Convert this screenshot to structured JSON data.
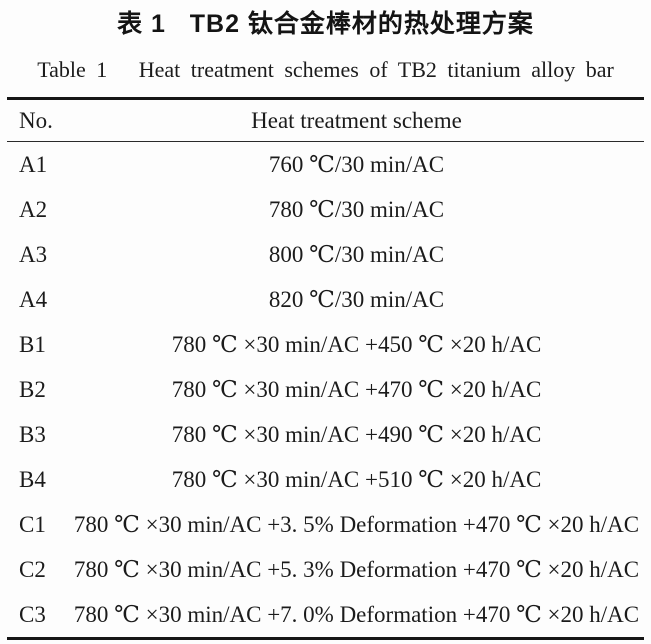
{
  "titles": {
    "chinese": "表 1   TB2 钛合金棒材的热处理方案",
    "english": "Table 1   Heat treatment schemes of TB2 titanium alloy bar"
  },
  "table": {
    "columns": [
      "No.",
      "Heat treatment scheme"
    ],
    "rows": [
      {
        "no": "A1",
        "scheme": "760 ℃/30 min/AC"
      },
      {
        "no": "A2",
        "scheme": "780 ℃/30 min/AC"
      },
      {
        "no": "A3",
        "scheme": "800 ℃/30 min/AC"
      },
      {
        "no": "A4",
        "scheme": "820 ℃/30 min/AC"
      },
      {
        "no": "B1",
        "scheme": "780 ℃ ×30 min/AC +450 ℃ ×20 h/AC"
      },
      {
        "no": "B2",
        "scheme": "780 ℃ ×30 min/AC +470 ℃ ×20 h/AC"
      },
      {
        "no": "B3",
        "scheme": "780 ℃ ×30 min/AC +490 ℃ ×20 h/AC"
      },
      {
        "no": "B4",
        "scheme": "780 ℃ ×30 min/AC +510 ℃ ×20 h/AC"
      },
      {
        "no": "C1",
        "scheme": "780 ℃ ×30 min/AC +3. 5% Deformation +470 ℃ ×20 h/AC"
      },
      {
        "no": "C2",
        "scheme": "780 ℃ ×30 min/AC +5. 3% Deformation +470 ℃ ×20 h/AC"
      },
      {
        "no": "C3",
        "scheme": "780 ℃ ×30 min/AC +7. 0% Deformation +470 ℃ ×20 h/AC"
      }
    ]
  },
  "chart_data": {
    "type": "table",
    "title": "Table 1  Heat treatment schemes of TB2 titanium alloy bar",
    "columns": [
      "No.",
      "Heat treatment scheme"
    ],
    "rows": [
      [
        "A1",
        "760 ℃/30 min/AC"
      ],
      [
        "A2",
        "780 ℃/30 min/AC"
      ],
      [
        "A3",
        "800 ℃/30 min/AC"
      ],
      [
        "A4",
        "820 ℃/30 min/AC"
      ],
      [
        "B1",
        "780 ℃ ×30 min/AC +450 ℃ ×20 h/AC"
      ],
      [
        "B2",
        "780 ℃ ×30 min/AC +470 ℃ ×20 h/AC"
      ],
      [
        "B3",
        "780 ℃ ×30 min/AC +490 ℃ ×20 h/AC"
      ],
      [
        "B4",
        "780 ℃ ×30 min/AC +510 ℃ ×20 h/AC"
      ],
      [
        "C1",
        "780 ℃ ×30 min/AC +3. 5% Deformation +470 ℃ ×20 h/AC"
      ],
      [
        "C2",
        "780 ℃ ×30 min/AC +5. 3% Deformation +470 ℃ ×20 h/AC"
      ],
      [
        "C3",
        "780 ℃ ×30 min/AC +7. 0% Deformation +470 ℃ ×20 h/AC"
      ]
    ]
  },
  "colors": {
    "background": "#fdfdfd",
    "text": "#1b1b1b",
    "rule": "#161616"
  }
}
